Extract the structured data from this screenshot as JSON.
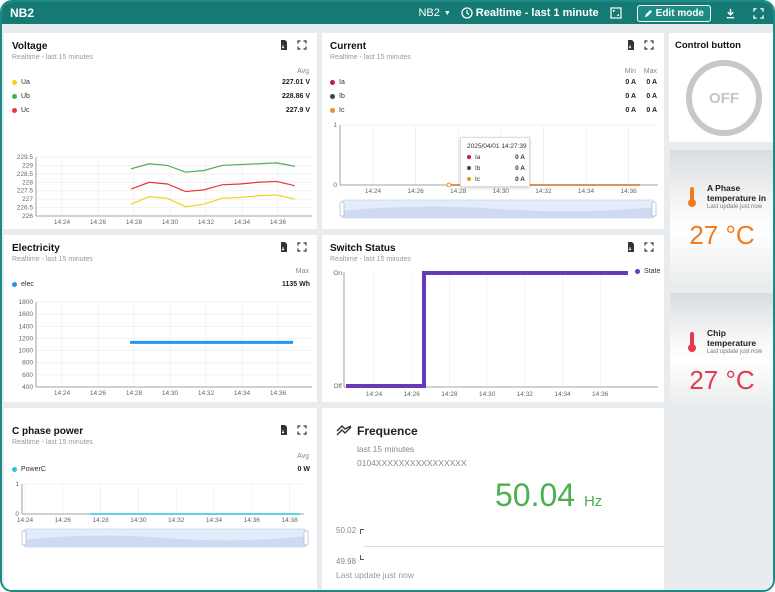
{
  "topbar": {
    "title": "NB2",
    "device_select": "NB2",
    "time_range": "Realtime - last 1 minute",
    "edit_mode": "Edit mode"
  },
  "voltage": {
    "title": "Voltage",
    "subtitle": "Realtime - last 15 minutes",
    "col_header": "Avg",
    "legend": [
      {
        "name": "Ua",
        "value": "227.01 V",
        "color": "#f2d21b"
      },
      {
        "name": "Ub",
        "value": "228.86 V",
        "color": "#4caf50"
      },
      {
        "name": "Uc",
        "value": "227.9 V",
        "color": "#e53935"
      }
    ]
  },
  "current": {
    "title": "Current",
    "subtitle": "Realtime - last 15 minutes",
    "col_min": "Min",
    "col_max": "Max",
    "legend": [
      {
        "name": "Ia",
        "min": "0 A",
        "max": "0 A",
        "color": "#c2185b"
      },
      {
        "name": "Ib",
        "min": "0 A",
        "max": "0 A",
        "color": "#37474f"
      },
      {
        "name": "Ic",
        "min": "0 A",
        "max": "0 A",
        "color": "#ef8f1f"
      }
    ],
    "tooltip": {
      "time": "2025/04/01 14:27:39",
      "rows": [
        {
          "name": "Ia",
          "value": "0 A"
        },
        {
          "name": "Ib",
          "value": "0 A"
        },
        {
          "name": "Ic",
          "value": "0 A"
        }
      ]
    }
  },
  "control": {
    "title": "Control button",
    "state": "OFF"
  },
  "electricity": {
    "title": "Electricity",
    "subtitle": "Realtime - last 15 minutes",
    "col_header": "Max",
    "legend": [
      {
        "name": "elec",
        "value": "1135 Wh",
        "color": "#2196f3"
      }
    ]
  },
  "switch_status": {
    "title": "Switch Status",
    "subtitle": "Realtime - last 15 minutes",
    "legend": "State",
    "color": "#673ab7"
  },
  "temp_a": {
    "title": "A Phase temperature in",
    "update": "Last update just now",
    "value": "27 °C",
    "color": "#ef7c1f"
  },
  "temp_chip": {
    "title": "Chip temperature",
    "update": "Last update just now",
    "value": "27 °C",
    "color": "#e53950"
  },
  "c_power": {
    "title": "C phase power",
    "subtitle": "Realtime - last 15 minutes",
    "col_header": "Avg",
    "legend": [
      {
        "name": "PowerC",
        "value": "0 W",
        "color": "#26c6da"
      }
    ]
  },
  "frequence": {
    "title": "Frequence",
    "subtitle": "last 15 minutes",
    "device_id": "0104XXXXXXXXXXXXXXXX",
    "value": "50.04",
    "unit": "Hz",
    "axis_top": "50.02",
    "axis_bottom": "49.98",
    "update": "Last update just now"
  },
  "chart_data": [
    {
      "id": "voltage",
      "type": "line",
      "title": "Voltage",
      "x": [
        "14:28",
        "14:29",
        "14:30",
        "14:31",
        "14:32",
        "14:33",
        "14:34",
        "14:35",
        "14:36",
        "14:37"
      ],
      "xticks": [
        "14:24",
        "14:26",
        "14:28",
        "14:30",
        "14:32",
        "14:34",
        "14:36"
      ],
      "yticks": [
        226,
        226.5,
        227,
        227.5,
        228,
        228.5,
        229,
        229.5
      ],
      "ylim": [
        226,
        229.5
      ],
      "series": [
        {
          "name": "Ub",
          "color": "#4caf50",
          "values": [
            228.8,
            229.1,
            229.0,
            228.6,
            228.7,
            229.0,
            229.05,
            229.1,
            229.15,
            228.95
          ]
        },
        {
          "name": "Uc",
          "color": "#e53935",
          "values": [
            227.6,
            228.0,
            227.9,
            227.45,
            227.55,
            227.85,
            227.9,
            228.0,
            228.05,
            227.8
          ]
        },
        {
          "name": "Ua",
          "color": "#f2d21b",
          "values": [
            226.7,
            227.15,
            227.05,
            226.55,
            226.7,
            227.05,
            227.1,
            227.2,
            227.25,
            227.0
          ]
        }
      ]
    },
    {
      "id": "current",
      "type": "line",
      "title": "Current",
      "xticks": [
        "14:24",
        "14:26",
        "14:28",
        "14:30",
        "14:32",
        "14:34",
        "14:36"
      ],
      "yticks": [
        0,
        1
      ],
      "ylim": [
        0,
        1
      ],
      "series": [
        {
          "name": "Ia",
          "color": "#c2185b",
          "values": [
            0,
            0
          ]
        },
        {
          "name": "Ib",
          "color": "#37474f",
          "values": [
            0,
            0
          ]
        },
        {
          "name": "Ic",
          "color": "#ef8f1f",
          "values": [
            0,
            0
          ]
        }
      ]
    },
    {
      "id": "electricity",
      "type": "line",
      "title": "Electricity",
      "xticks": [
        "14:24",
        "14:26",
        "14:28",
        "14:30",
        "14:32",
        "14:34",
        "14:36"
      ],
      "yticks": [
        400,
        600,
        800,
        1000,
        1200,
        1400,
        1600,
        1800
      ],
      "ylim": [
        400,
        1800
      ],
      "series": [
        {
          "name": "elec",
          "color": "#2196f3",
          "values": [
            1135,
            1135
          ]
        }
      ]
    },
    {
      "id": "switch",
      "type": "line",
      "title": "Switch Status",
      "xticks": [
        "14:24",
        "14:26",
        "14:28",
        "14:30",
        "14:32",
        "14:34",
        "14:36"
      ],
      "yticks": [
        "Off",
        "On"
      ],
      "series": [
        {
          "name": "State",
          "color": "#673ab7",
          "values": [
            "Off",
            "On"
          ]
        }
      ]
    },
    {
      "id": "power_c",
      "type": "line",
      "title": "C phase power",
      "xticks": [
        "14:24",
        "14:26",
        "14:28",
        "14:30",
        "14:32",
        "14:34",
        "14:36",
        "14:38"
      ],
      "yticks": [
        0,
        1
      ],
      "ylim": [
        0,
        1
      ],
      "series": [
        {
          "name": "PowerC",
          "color": "#26c6da",
          "values": [
            0,
            0
          ]
        }
      ]
    }
  ]
}
